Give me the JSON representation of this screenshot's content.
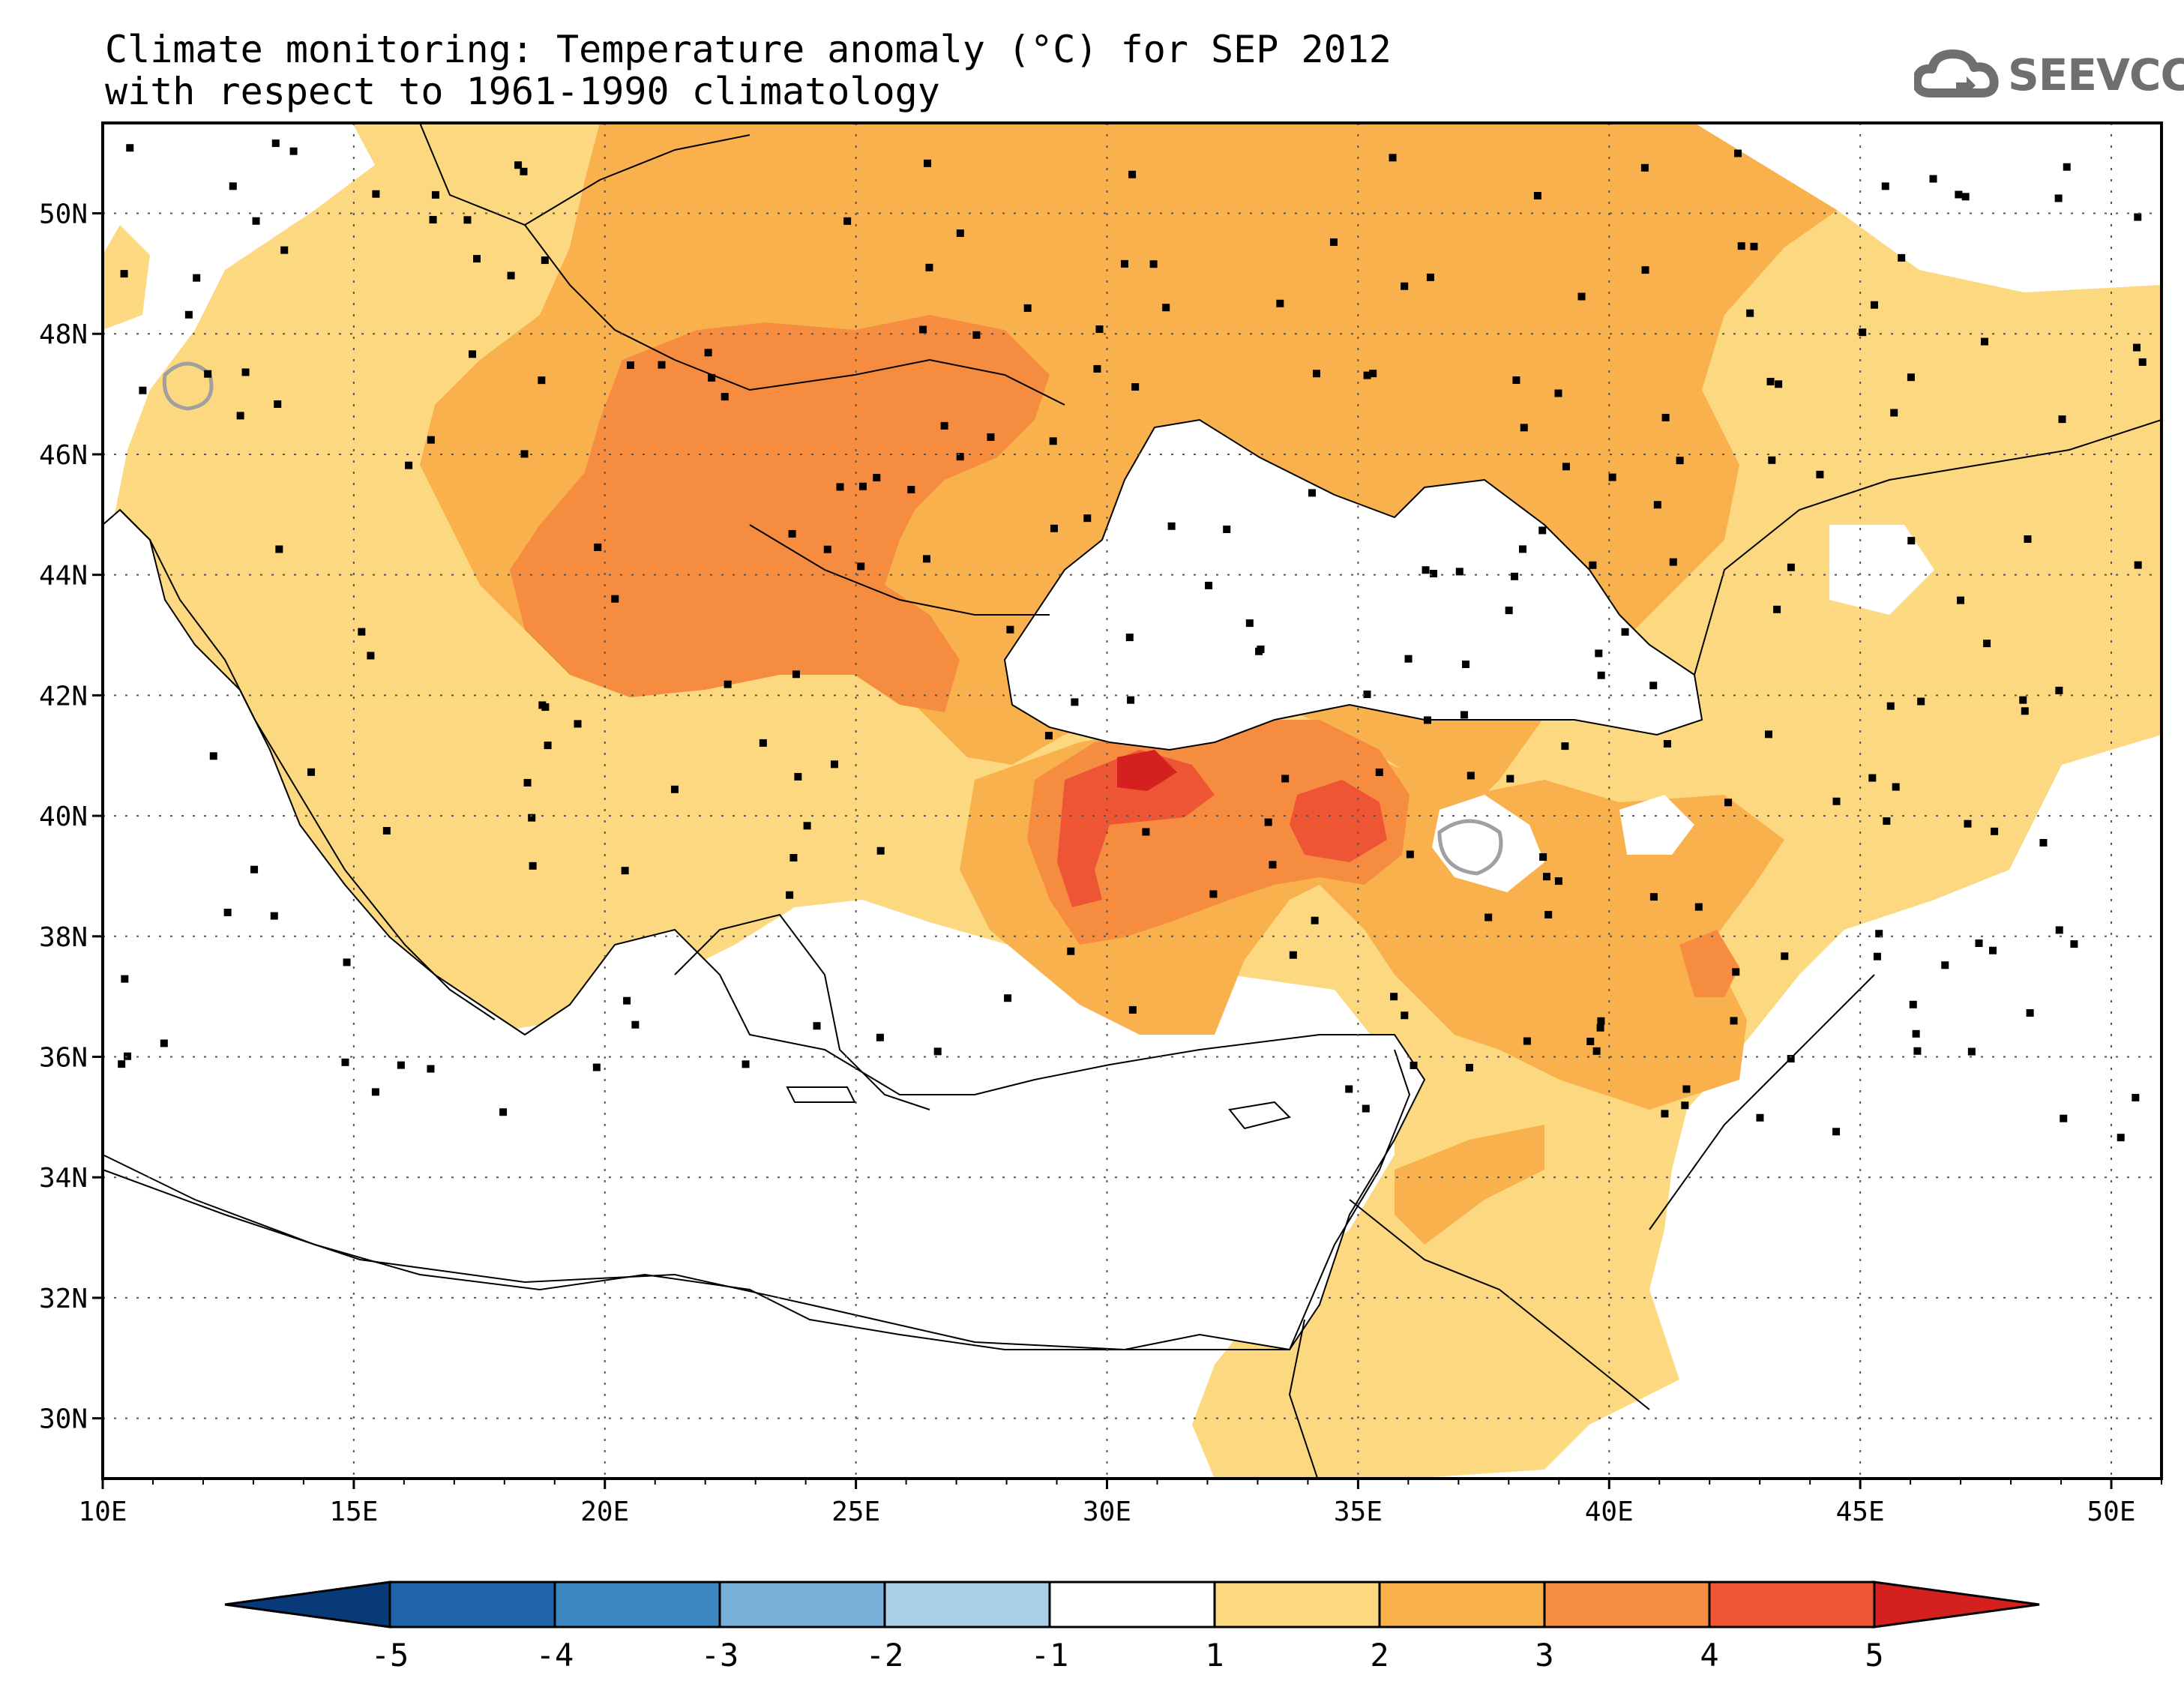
{
  "title": {
    "line1": "Climate monitoring: Temperature anomaly (°C) for SEP 2012",
    "line2": "with respect to 1961-1990 climatology"
  },
  "logo": {
    "text": "SEEVCCC",
    "icon": "cloud-icon"
  },
  "map": {
    "lon_range": [
      10,
      51
    ],
    "lat_range": [
      29,
      51.5
    ],
    "lon_ticks": [
      "10E",
      "15E",
      "20E",
      "25E",
      "30E",
      "35E",
      "40E",
      "45E",
      "50E"
    ],
    "lat_ticks": [
      "30N",
      "32N",
      "34N",
      "36N",
      "38N",
      "40N",
      "42N",
      "44N",
      "46N",
      "48N",
      "50N"
    ],
    "grid": true
  },
  "colorbar": {
    "labels": [
      "-5",
      "-4",
      "-3",
      "-2",
      "-1",
      "1",
      "2",
      "3",
      "4",
      "5"
    ],
    "colors": [
      "#083a7a",
      "#1f64a8",
      "#3e86c2",
      "#76b0d9",
      "#a9d0e6",
      "#ffffff",
      "#fcd980",
      "#f9b14d",
      "#f68c3f",
      "#ee5534",
      "#d52020"
    ]
  },
  "colors": {
    "anom_1_2": "#fcd980",
    "anom_2_3": "#f9b14d",
    "anom_3_4": "#f68c3f",
    "anom_4_5": "#ee5534",
    "anom_5plus": "#d52020"
  }
}
